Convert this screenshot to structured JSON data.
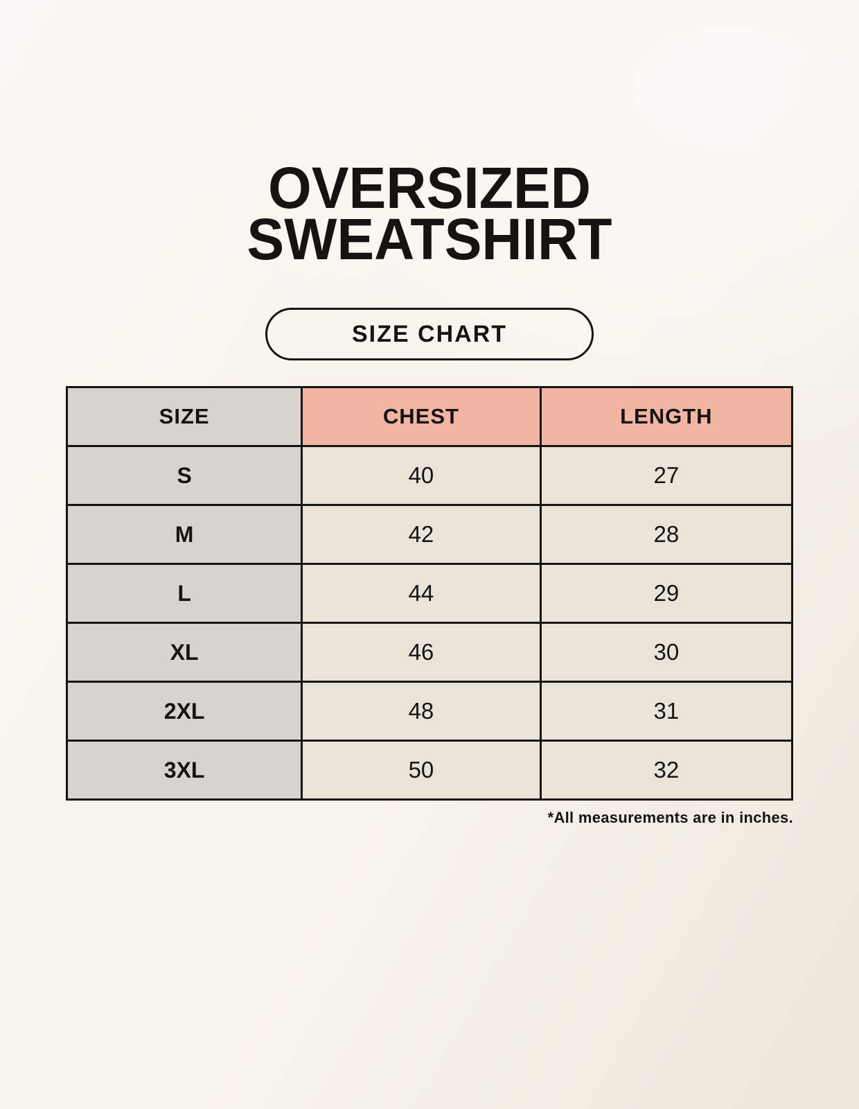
{
  "poster": {
    "title_line1": "OVERSIZED",
    "title_line2": "SWEATSHIRT",
    "badge_label": "SIZE CHART",
    "footnote": "*All measurements are in inches."
  },
  "colors": {
    "page_background": "#f8f3ec",
    "size_column_bg": "#d9d3d0",
    "header_accent_bg": "#f0b5a3",
    "cell_bg": "#e9e3d8",
    "border": "#161412",
    "text": "#161412"
  },
  "chart_data": {
    "type": "table",
    "title": "OVERSIZED SWEATSHIRT — SIZE CHART",
    "columns": [
      "SIZE",
      "CHEST",
      "LENGTH"
    ],
    "rows": [
      [
        "S",
        40,
        27
      ],
      [
        "M",
        42,
        28
      ],
      [
        "L",
        44,
        29
      ],
      [
        "XL",
        46,
        30
      ],
      [
        "2XL",
        48,
        31
      ],
      [
        "3XL",
        50,
        32
      ]
    ],
    "units": "inches",
    "legend_position": "none",
    "grid": true
  }
}
